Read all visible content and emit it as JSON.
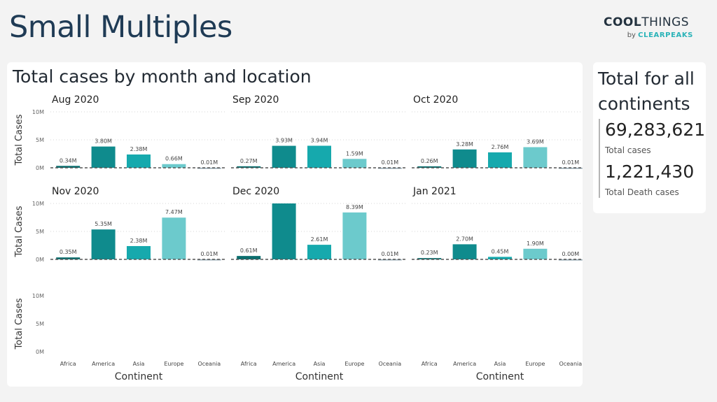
{
  "header": {
    "title": "Small Multiples",
    "brand_bold": "COOL",
    "brand_light": "THINGS",
    "brand_by": "by",
    "brand_company": "CLEARPEAKS"
  },
  "main": {
    "title": "Total cases by month and location"
  },
  "side": {
    "title": "Total for all continents",
    "kpis": [
      {
        "value": "69,283,621",
        "label": "Total cases"
      },
      {
        "value": "1,221,430",
        "label": "Total Death cases"
      }
    ]
  },
  "chart_data": {
    "type": "bar",
    "categories": [
      "Africa",
      "America",
      "Asia",
      "Europe",
      "Oceania"
    ],
    "colors": [
      "#0b6e6e",
      "#0f8b8d",
      "#16a9ad",
      "#6ccacc",
      "#8fa5b0"
    ],
    "ylabel": "Total Cases",
    "xlabel": "Continent",
    "ylim": [
      0,
      10
    ],
    "yticks": [
      "0M",
      "5M",
      "10M"
    ],
    "panels": [
      {
        "title": "Aug 2020",
        "values": [
          0.34,
          3.8,
          2.38,
          0.66,
          0.01
        ],
        "labels": [
          "0.34M",
          "3.80M",
          "2.38M",
          "0.66M",
          "0.01M"
        ]
      },
      {
        "title": "Sep 2020",
        "values": [
          0.27,
          3.93,
          3.94,
          1.59,
          0.01
        ],
        "labels": [
          "0.27M",
          "3.93M",
          "3.94M",
          "1.59M",
          "0.01M"
        ]
      },
      {
        "title": "Oct 2020",
        "values": [
          0.26,
          3.28,
          2.76,
          3.69,
          0.01
        ],
        "labels": [
          "0.26M",
          "3.28M",
          "2.76M",
          "3.69M",
          "0.01M"
        ]
      },
      {
        "title": "Nov 2020",
        "values": [
          0.35,
          5.35,
          2.38,
          7.47,
          0.01
        ],
        "labels": [
          "0.35M",
          "5.35M",
          "2.38M",
          "7.47M",
          "0.01M"
        ]
      },
      {
        "title": "Dec 2020",
        "values": [
          0.61,
          10.0,
          2.61,
          8.39,
          0.01
        ],
        "labels": [
          "0.61M",
          "",
          "2.61M",
          "8.39M",
          "0.01M"
        ]
      },
      {
        "title": "Jan 2021",
        "values": [
          0.23,
          2.7,
          0.45,
          1.9,
          0.0
        ],
        "labels": [
          "0.23M",
          "2.70M",
          "0.45M",
          "1.90M",
          "0.00M"
        ]
      }
    ]
  }
}
